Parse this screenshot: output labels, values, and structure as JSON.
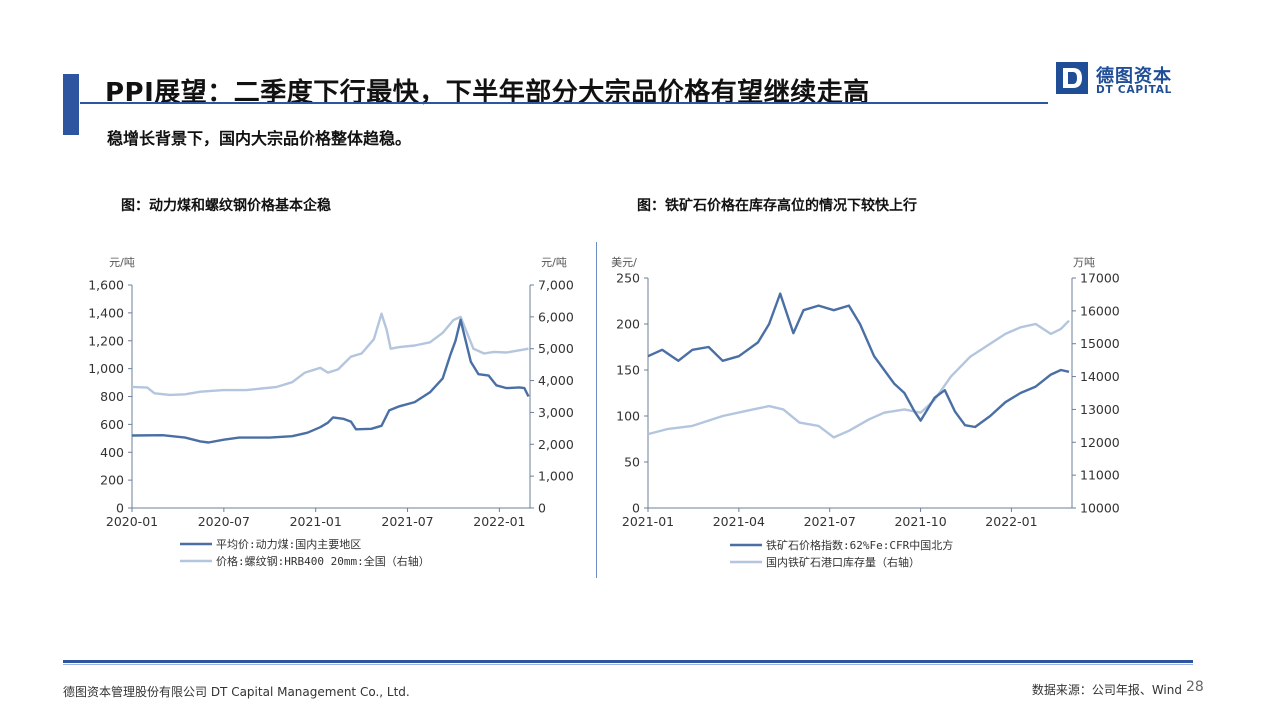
{
  "header": {
    "title": "PPI展望：二季度下行最快，下半年部分大宗品价格有望继续走高",
    "subtitle": "稳增长背景下，国内大宗品价格整体趋稳。"
  },
  "logo": {
    "cn": "德图资本",
    "en": "DT CAPITAL"
  },
  "colors": {
    "accent": "#2d55a0",
    "series_dark": "#4a6fa5",
    "series_light": "#b3c6de"
  },
  "footer": {
    "company": "德图资本管理股份有限公司  DT Capital Management  Co., Ltd.",
    "source": "数据来源：公司年报、Wind",
    "page": "28"
  },
  "chart_data": [
    {
      "type": "line",
      "title": "图：动力煤和螺纹钢价格基本企稳",
      "y_left_unit": "元/吨",
      "y_right_unit": "元/吨",
      "ylim_left": [
        0,
        1600
      ],
      "ylim_right": [
        0,
        7000
      ],
      "y_left_ticks": [
        "0",
        "200",
        "400",
        "600",
        "800",
        "1,000",
        "1,200",
        "1,400",
        "1,600"
      ],
      "y_right_ticks": [
        "0",
        "1,000",
        "2,000",
        "3,000",
        "4,000",
        "5,000",
        "6,000",
        "7,000"
      ],
      "x_range": [
        "2020-01",
        "2022-03"
      ],
      "x_ticks": [
        "2020-01",
        "2020-07",
        "2021-01",
        "2021-07",
        "2022-01"
      ],
      "series": [
        {
          "name": "平均价:动力煤:国内主要地区",
          "axis": "left",
          "color": "#4a6fa5",
          "points": [
            [
              "2020-01-01",
              520
            ],
            [
              "2020-03-01",
              522
            ],
            [
              "2020-04-15",
              505
            ],
            [
              "2020-05-15",
              478
            ],
            [
              "2020-06-01",
              470
            ],
            [
              "2020-07-01",
              490
            ],
            [
              "2020-08-01",
              505
            ],
            [
              "2020-10-01",
              505
            ],
            [
              "2020-11-15",
              515
            ],
            [
              "2020-12-15",
              540
            ],
            [
              "2021-01-10",
              580
            ],
            [
              "2021-01-25",
              612
            ],
            [
              "2021-02-05",
              650
            ],
            [
              "2021-02-25",
              640
            ],
            [
              "2021-03-10",
              620
            ],
            [
              "2021-03-20",
              565
            ],
            [
              "2021-04-20",
              568
            ],
            [
              "2021-05-10",
              590
            ],
            [
              "2021-05-25",
              700
            ],
            [
              "2021-06-15",
              730
            ],
            [
              "2021-07-15",
              760
            ],
            [
              "2021-08-15",
              830
            ],
            [
              "2021-09-10",
              930
            ],
            [
              "2021-09-25",
              1100
            ],
            [
              "2021-10-05",
              1200
            ],
            [
              "2021-10-15",
              1350
            ],
            [
              "2021-10-25",
              1200
            ],
            [
              "2021-11-05",
              1050
            ],
            [
              "2021-11-20",
              960
            ],
            [
              "2021-12-10",
              950
            ],
            [
              "2021-12-25",
              880
            ],
            [
              "2022-01-15",
              860
            ],
            [
              "2022-02-10",
              865
            ],
            [
              "2022-02-20",
              860
            ],
            [
              "2022-02-28",
              800
            ]
          ]
        },
        {
          "name": "价格:螺纹钢:HRB400 20mm:全国（右轴）",
          "axis": "right",
          "color": "#b3c6de",
          "points": [
            [
              "2020-01-01",
              3800
            ],
            [
              "2020-02-01",
              3780
            ],
            [
              "2020-02-15",
              3600
            ],
            [
              "2020-03-15",
              3550
            ],
            [
              "2020-04-15",
              3570
            ],
            [
              "2020-05-15",
              3650
            ],
            [
              "2020-07-01",
              3700
            ],
            [
              "2020-08-15",
              3700
            ],
            [
              "2020-09-15",
              3750
            ],
            [
              "2020-10-15",
              3800
            ],
            [
              "2020-11-15",
              3950
            ],
            [
              "2020-12-10",
              4250
            ],
            [
              "2021-01-10",
              4400
            ],
            [
              "2021-01-25",
              4250
            ],
            [
              "2021-02-15",
              4350
            ],
            [
              "2021-03-10",
              4750
            ],
            [
              "2021-04-01",
              4850
            ],
            [
              "2021-04-25",
              5300
            ],
            [
              "2021-05-10",
              6100
            ],
            [
              "2021-05-20",
              5600
            ],
            [
              "2021-05-28",
              5000
            ],
            [
              "2021-06-15",
              5050
            ],
            [
              "2021-07-15",
              5100
            ],
            [
              "2021-08-15",
              5200
            ],
            [
              "2021-09-10",
              5500
            ],
            [
              "2021-10-01",
              5900
            ],
            [
              "2021-10-15",
              6000
            ],
            [
              "2021-10-25",
              5600
            ],
            [
              "2021-11-10",
              5000
            ],
            [
              "2021-12-01",
              4850
            ],
            [
              "2021-12-20",
              4900
            ],
            [
              "2022-01-15",
              4880
            ],
            [
              "2022-02-10",
              4950
            ],
            [
              "2022-02-28",
              5000
            ]
          ]
        }
      ]
    },
    {
      "type": "line",
      "title": "图：铁矿石价格在库存高位的情况下较快上行",
      "y_left_unit": "美元/",
      "y_right_unit": "万吨",
      "ylim_left": [
        0,
        250
      ],
      "ylim_right": [
        10000,
        17000
      ],
      "y_left_ticks": [
        "0",
        "50",
        "100",
        "150",
        "200",
        "250"
      ],
      "y_right_ticks": [
        "10000",
        "11000",
        "12000",
        "13000",
        "14000",
        "15000",
        "16000",
        "17000"
      ],
      "x_range": [
        "2021-01",
        "2022-03"
      ],
      "x_ticks": [
        "2021-01",
        "2021-04",
        "2021-07",
        "2021-10",
        "2022-01"
      ],
      "series": [
        {
          "name": "铁矿石价格指数:62%Fe:CFR中国北方",
          "axis": "left",
          "color": "#4a6fa5",
          "points": [
            [
              "2021-01-01",
              165
            ],
            [
              "2021-01-15",
              172
            ],
            [
              "2021-02-01",
              160
            ],
            [
              "2021-02-15",
              172
            ],
            [
              "2021-03-01",
              175
            ],
            [
              "2021-03-15",
              160
            ],
            [
              "2021-04-01",
              165
            ],
            [
              "2021-04-20",
              180
            ],
            [
              "2021-05-01",
              200
            ],
            [
              "2021-05-12",
              233
            ],
            [
              "2021-05-25",
              190
            ],
            [
              "2021-06-05",
              215
            ],
            [
              "2021-06-20",
              220
            ],
            [
              "2021-07-05",
              215
            ],
            [
              "2021-07-20",
              220
            ],
            [
              "2021-08-01",
              200
            ],
            [
              "2021-08-15",
              165
            ],
            [
              "2021-08-25",
              150
            ],
            [
              "2021-09-05",
              135
            ],
            [
              "2021-09-15",
              125
            ],
            [
              "2021-09-25",
              105
            ],
            [
              "2021-10-01",
              95
            ],
            [
              "2021-10-15",
              120
            ],
            [
              "2021-10-25",
              128
            ],
            [
              "2021-11-05",
              105
            ],
            [
              "2021-11-15",
              90
            ],
            [
              "2021-11-25",
              88
            ],
            [
              "2021-12-10",
              100
            ],
            [
              "2021-12-25",
              115
            ],
            [
              "2022-01-10",
              125
            ],
            [
              "2022-01-25",
              132
            ],
            [
              "2022-02-10",
              145
            ],
            [
              "2022-02-20",
              150
            ],
            [
              "2022-02-28",
              148
            ]
          ]
        },
        {
          "name": "国内铁矿石港口库存量（右轴）",
          "axis": "right",
          "color": "#b3c6de",
          "points": [
            [
              "2021-01-01",
              12250
            ],
            [
              "2021-01-20",
              12400
            ],
            [
              "2021-02-15",
              12500
            ],
            [
              "2021-03-15",
              12800
            ],
            [
              "2021-04-15",
              13000
            ],
            [
              "2021-05-01",
              13100
            ],
            [
              "2021-05-15",
              13000
            ],
            [
              "2021-06-01",
              12600
            ],
            [
              "2021-06-20",
              12500
            ],
            [
              "2021-07-05",
              12150
            ],
            [
              "2021-07-20",
              12350
            ],
            [
              "2021-08-10",
              12700
            ],
            [
              "2021-08-25",
              12900
            ],
            [
              "2021-09-15",
              13000
            ],
            [
              "2021-10-01",
              12900
            ],
            [
              "2021-10-15",
              13300
            ],
            [
              "2021-11-01",
              14000
            ],
            [
              "2021-11-20",
              14600
            ],
            [
              "2021-12-10",
              15000
            ],
            [
              "2021-12-25",
              15300
            ],
            [
              "2022-01-10",
              15500
            ],
            [
              "2022-01-25",
              15600
            ],
            [
              "2022-02-10",
              15300
            ],
            [
              "2022-02-20",
              15450
            ],
            [
              "2022-02-28",
              15700
            ]
          ]
        }
      ]
    }
  ]
}
